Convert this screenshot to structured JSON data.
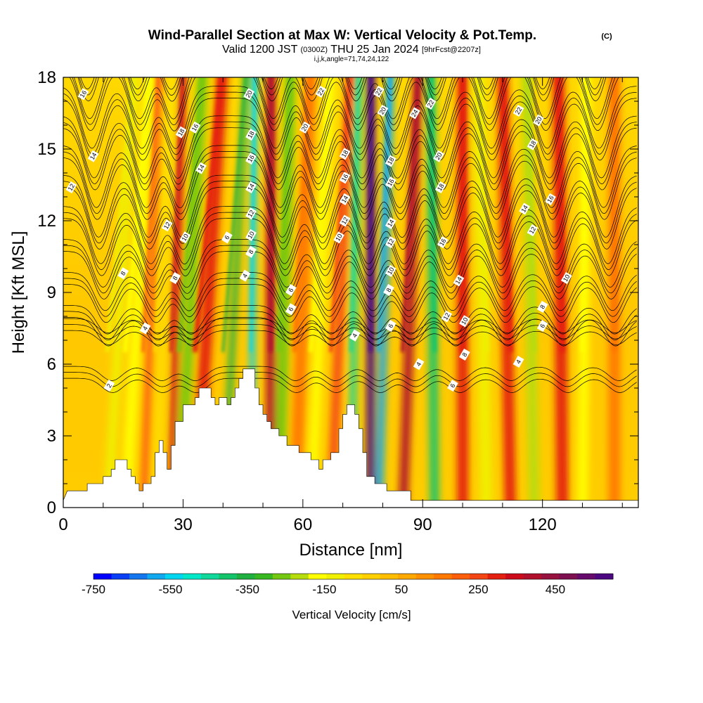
{
  "chart_data": {
    "type": "heatmap",
    "title": "Wind-Parallel Section at Max W: Vertical Velocity & Pot.Temp.",
    "title_mark": "(C)",
    "subtitle_valid": "Valid 1200 JST",
    "subtitle_z": "(0300Z)",
    "subtitle_date": "THU 25 Jan 2024",
    "subtitle_fcst": "[9hrFcst@2207z]",
    "subtitle_params": "i,j,k,angle=71,74,24,122",
    "xlabel": "Distance [nm]",
    "ylabel": "Height [Kft MSL]",
    "xlim": [
      0,
      144
    ],
    "ylim": [
      0,
      18
    ],
    "x_ticks": [
      0,
      30,
      60,
      90,
      120
    ],
    "y_ticks": [
      0,
      3,
      6,
      9,
      12,
      15,
      18
    ],
    "colorbar": {
      "label": "Vertical Velocity [cm/s]",
      "range": [
        -750,
        600
      ],
      "tick_values": [
        -750,
        -550,
        -350,
        -150,
        50,
        250,
        450
      ],
      "tick_labels": [
        "-750",
        "-550",
        "-350",
        "-150",
        "50",
        "250",
        "450"
      ],
      "colors": [
        "#0000ff",
        "#0a3ff5",
        "#1577f0",
        "#10a8ee",
        "#00d6ef",
        "#00e8c8",
        "#10d89a",
        "#14c46a",
        "#20b040",
        "#38b820",
        "#74c812",
        "#b6dc0e",
        "#ffff00",
        "#f0f000",
        "#ffe000",
        "#ffd000",
        "#ffbf00",
        "#ffa800",
        "#ff9000",
        "#ff7800",
        "#fc5e0c",
        "#f44614",
        "#e42010",
        "#cc0c1c",
        "#b0102c",
        "#981240",
        "#7e1050",
        "#660a6c",
        "#4c0880"
      ]
    },
    "velocity_bands": [
      {
        "x_top": 18,
        "x_bottom": 11,
        "w": -130,
        "width": 2.4
      },
      {
        "x_top": 22,
        "x_bottom": 15.5,
        "w": -180,
        "width": 2.8
      },
      {
        "x_top": 24,
        "x_bottom": 20,
        "w": 220,
        "width": 1.8
      },
      {
        "x_top": 27.5,
        "x_bottom": 23,
        "w": -80,
        "width": 1.6
      },
      {
        "x_top": 30,
        "x_bottom": 27,
        "w": 330,
        "width": 1.7
      },
      {
        "x_top": 35,
        "x_bottom": 29,
        "w": -260,
        "width": 2.6
      },
      {
        "x_top": 40,
        "x_bottom": 33,
        "w": 300,
        "width": 3.0
      },
      {
        "x_top": 46,
        "x_bottom": 40,
        "w": -340,
        "width": 1.5
      },
      {
        "x_top": 48,
        "x_bottom": 47,
        "w": -520,
        "width": 1.4
      },
      {
        "x_top": 52,
        "x_bottom": 52,
        "w": 380,
        "width": 2.4
      },
      {
        "x_top": 57,
        "x_bottom": 54,
        "w": -280,
        "width": 2.6
      },
      {
        "x_top": 62,
        "x_bottom": 58,
        "w": 170,
        "width": 3.0
      },
      {
        "x_top": 67,
        "x_bottom": 62,
        "w": -170,
        "width": 2.4
      },
      {
        "x_top": 72,
        "x_bottom": 67,
        "w": 260,
        "width": 2.2
      },
      {
        "x_top": 74,
        "x_bottom": 72,
        "w": -430,
        "width": 1.6
      },
      {
        "x_top": 77,
        "x_bottom": 77,
        "w": 560,
        "width": 2.2
      },
      {
        "x_top": 82,
        "x_bottom": 79,
        "w": -600,
        "width": 1.8
      },
      {
        "x_top": 89,
        "x_bottom": 85,
        "w": 380,
        "width": 2.3
      },
      {
        "x_top": 92,
        "x_bottom": 93,
        "w": -420,
        "width": 2.3
      },
      {
        "x_top": 100,
        "x_bottom": 100,
        "w": 300,
        "width": 2.8
      },
      {
        "x_top": 104,
        "x_bottom": 106,
        "w": -130,
        "width": 3.0
      },
      {
        "x_top": 110,
        "x_bottom": 112,
        "w": 300,
        "width": 2.8
      },
      {
        "x_top": 116,
        "x_bottom": 118,
        "w": -230,
        "width": 2.6
      },
      {
        "x_top": 124,
        "x_bottom": 125,
        "w": 280,
        "width": 3.0
      },
      {
        "x_top": 131,
        "x_bottom": 130,
        "w": -150,
        "width": 2.6
      },
      {
        "x_top": 138,
        "x_bottom": 138,
        "w": 180,
        "width": 3.0
      }
    ],
    "terrain": [
      [
        0,
        0.3
      ],
      [
        1,
        0.7
      ],
      [
        6,
        0.7
      ],
      [
        6,
        1.0
      ],
      [
        10,
        1.0
      ],
      [
        10,
        1.3
      ],
      [
        12,
        1.3
      ],
      [
        12,
        1.6
      ],
      [
        13,
        1.6
      ],
      [
        13,
        2.0
      ],
      [
        16,
        2.0
      ],
      [
        16,
        1.6
      ],
      [
        17,
        1.6
      ],
      [
        17,
        1.3
      ],
      [
        18,
        1.3
      ],
      [
        18,
        1.0
      ],
      [
        19,
        1.0
      ],
      [
        19,
        0.7
      ],
      [
        20,
        0.7
      ],
      [
        20,
        1.0
      ],
      [
        22,
        1.0
      ],
      [
        22,
        1.3
      ],
      [
        23,
        1.3
      ],
      [
        23,
        2.3
      ],
      [
        24,
        2.3
      ],
      [
        24,
        2.8
      ],
      [
        25,
        2.8
      ],
      [
        25,
        2.3
      ],
      [
        26,
        2.3
      ],
      [
        26,
        1.6
      ],
      [
        27,
        1.6
      ],
      [
        27,
        2.6
      ],
      [
        28,
        2.6
      ],
      [
        28,
        3.6
      ],
      [
        30,
        3.6
      ],
      [
        30,
        4.3
      ],
      [
        33,
        4.3
      ],
      [
        33,
        4.6
      ],
      [
        34,
        4.6
      ],
      [
        34,
        5.0
      ],
      [
        37,
        5.0
      ],
      [
        37,
        4.6
      ],
      [
        38,
        4.6
      ],
      [
        38,
        4.3
      ],
      [
        39,
        4.3
      ],
      [
        39,
        4.6
      ],
      [
        41,
        4.6
      ],
      [
        41,
        4.3
      ],
      [
        42,
        4.3
      ],
      [
        42,
        4.6
      ],
      [
        43,
        4.6
      ],
      [
        43,
        5.0
      ],
      [
        44,
        5.0
      ],
      [
        44,
        5.4
      ],
      [
        45,
        5.4
      ],
      [
        45,
        5.8
      ],
      [
        48,
        5.8
      ],
      [
        48,
        5.0
      ],
      [
        49,
        5.0
      ],
      [
        49,
        4.3
      ],
      [
        50,
        4.3
      ],
      [
        50,
        3.9
      ],
      [
        51,
        3.9
      ],
      [
        51,
        3.6
      ],
      [
        52,
        3.6
      ],
      [
        52,
        3.3
      ],
      [
        54,
        3.3
      ],
      [
        54,
        3.0
      ],
      [
        56,
        3.0
      ],
      [
        56,
        2.6
      ],
      [
        59,
        2.6
      ],
      [
        59,
        2.3
      ],
      [
        62,
        2.3
      ],
      [
        62,
        2.0
      ],
      [
        64,
        2.0
      ],
      [
        64,
        1.6
      ],
      [
        65,
        1.6
      ],
      [
        65,
        2.0
      ],
      [
        67,
        2.0
      ],
      [
        67,
        2.3
      ],
      [
        69,
        2.3
      ],
      [
        69,
        3.3
      ],
      [
        70,
        3.3
      ],
      [
        70,
        3.9
      ],
      [
        71,
        3.9
      ],
      [
        71,
        4.3
      ],
      [
        73,
        4.3
      ],
      [
        73,
        3.9
      ],
      [
        74,
        3.9
      ],
      [
        74,
        3.3
      ],
      [
        75,
        3.3
      ],
      [
        75,
        2.3
      ],
      [
        76,
        2.3
      ],
      [
        76,
        1.3
      ],
      [
        78,
        1.3
      ],
      [
        78,
        1.0
      ],
      [
        81,
        1.0
      ],
      [
        81,
        0.7
      ],
      [
        87,
        0.7
      ],
      [
        87,
        0.3
      ],
      [
        144,
        0.3
      ]
    ],
    "theta_contours": {
      "levels": [
        2,
        4,
        6,
        8,
        10,
        12,
        14,
        16,
        18,
        20,
        22,
        24
      ],
      "wave_centers": [
        12,
        24.5,
        33,
        58,
        68,
        79,
        88,
        99,
        112,
        126,
        139
      ],
      "labels": [
        {
          "text": "16",
          "x": 5,
          "y": 17.3
        },
        {
          "text": "14",
          "x": 7.5,
          "y": 14.7
        },
        {
          "text": "12",
          "x": 2,
          "y": 13.4
        },
        {
          "text": "8",
          "x": 15,
          "y": 9.8
        },
        {
          "text": "4",
          "x": 20.5,
          "y": 7.5
        },
        {
          "text": "2",
          "x": 11.5,
          "y": 5.1
        },
        {
          "text": "18",
          "x": 29.5,
          "y": 15.7
        },
        {
          "text": "16",
          "x": 33,
          "y": 15.9
        },
        {
          "text": "14",
          "x": 34.5,
          "y": 14.2
        },
        {
          "text": "12",
          "x": 26,
          "y": 11.8
        },
        {
          "text": "10",
          "x": 30.5,
          "y": 11.3
        },
        {
          "text": "8",
          "x": 28,
          "y": 9.6
        },
        {
          "text": "6",
          "x": 41,
          "y": 11.3
        },
        {
          "text": "4",
          "x": 45.5,
          "y": 9.7
        },
        {
          "text": "20",
          "x": 46.5,
          "y": 17.3
        },
        {
          "text": "18",
          "x": 47,
          "y": 15.6
        },
        {
          "text": "16",
          "x": 47,
          "y": 14.6
        },
        {
          "text": "14",
          "x": 47,
          "y": 13.4
        },
        {
          "text": "12",
          "x": 47,
          "y": 12.3
        },
        {
          "text": "10",
          "x": 47,
          "y": 11.4
        },
        {
          "text": "8",
          "x": 47,
          "y": 10.7
        },
        {
          "text": "6",
          "x": 57,
          "y": 9.1
        },
        {
          "text": "6",
          "x": 57,
          "y": 8.3
        },
        {
          "text": "22",
          "x": 64.5,
          "y": 17.4
        },
        {
          "text": "20",
          "x": 60.5,
          "y": 15.9
        },
        {
          "text": "18",
          "x": 70.5,
          "y": 14.8
        },
        {
          "text": "16",
          "x": 70.5,
          "y": 13.8
        },
        {
          "text": "14",
          "x": 70.5,
          "y": 12.9
        },
        {
          "text": "12",
          "x": 70.5,
          "y": 12.0
        },
        {
          "text": "10",
          "x": 69,
          "y": 11.3
        },
        {
          "text": "4",
          "x": 73,
          "y": 7.2
        },
        {
          "text": "22",
          "x": 79,
          "y": 17.4
        },
        {
          "text": "20",
          "x": 80,
          "y": 16.6
        },
        {
          "text": "24",
          "x": 88,
          "y": 16.5
        },
        {
          "text": "22",
          "x": 92,
          "y": 16.9
        },
        {
          "text": "18",
          "x": 82,
          "y": 14.5
        },
        {
          "text": "16",
          "x": 82,
          "y": 13.6
        },
        {
          "text": "14",
          "x": 82,
          "y": 11.9
        },
        {
          "text": "12",
          "x": 82,
          "y": 11.1
        },
        {
          "text": "10",
          "x": 82,
          "y": 9.9
        },
        {
          "text": "8",
          "x": 81.5,
          "y": 9.1
        },
        {
          "text": "6",
          "x": 82,
          "y": 7.6
        },
        {
          "text": "4",
          "x": 89,
          "y": 6.0
        },
        {
          "text": "20",
          "x": 94,
          "y": 14.7
        },
        {
          "text": "18",
          "x": 94.5,
          "y": 13.4
        },
        {
          "text": "16",
          "x": 95,
          "y": 11.1
        },
        {
          "text": "14",
          "x": 99,
          "y": 9.5
        },
        {
          "text": "12",
          "x": 96,
          "y": 8.0
        },
        {
          "text": "10",
          "x": 100.5,
          "y": 7.8
        },
        {
          "text": "8",
          "x": 100.5,
          "y": 6.4
        },
        {
          "text": "6",
          "x": 97.5,
          "y": 5.1
        },
        {
          "text": "22",
          "x": 114,
          "y": 16.6
        },
        {
          "text": "20",
          "x": 119,
          "y": 16.2
        },
        {
          "text": "18",
          "x": 117.5,
          "y": 15.2
        },
        {
          "text": "16",
          "x": 122,
          "y": 12.9
        },
        {
          "text": "14",
          "x": 115.5,
          "y": 12.5
        },
        {
          "text": "12",
          "x": 117.5,
          "y": 11.6
        },
        {
          "text": "10",
          "x": 126,
          "y": 9.6
        },
        {
          "text": "8",
          "x": 120,
          "y": 8.4
        },
        {
          "text": "6",
          "x": 120,
          "y": 7.6
        },
        {
          "text": "4",
          "x": 114,
          "y": 6.1
        }
      ]
    }
  }
}
